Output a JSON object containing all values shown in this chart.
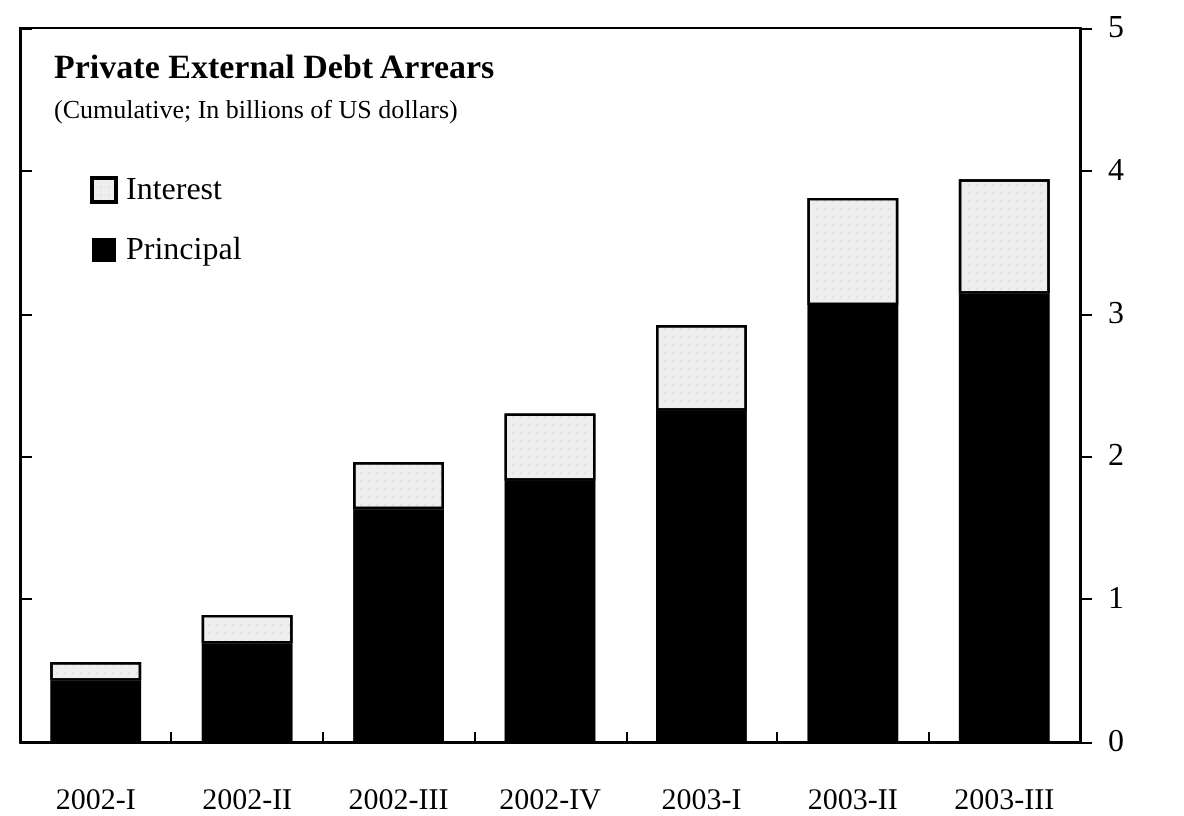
{
  "chart_data": {
    "type": "bar",
    "title": "Private External Debt Arrears",
    "subtitle": "(Cumulative; In billions of US dollars)",
    "categories": [
      "2002-I",
      "2002-II",
      "2002-III",
      "2002-IV",
      "2003-I",
      "2003-II",
      "2003-III"
    ],
    "stacked": true,
    "series": [
      {
        "name": "Principal",
        "color": "#000000",
        "values": [
          0.43,
          0.69,
          1.63,
          1.83,
          2.32,
          3.06,
          3.14
        ]
      },
      {
        "name": "Interest",
        "color": "#eeeeee",
        "values": [
          0.13,
          0.2,
          0.33,
          0.47,
          0.6,
          0.75,
          0.8
        ]
      }
    ],
    "ylim": [
      0,
      5
    ],
    "yticks": [
      0,
      1,
      2,
      3,
      4,
      5
    ],
    "grid": false,
    "legend": "top left"
  }
}
